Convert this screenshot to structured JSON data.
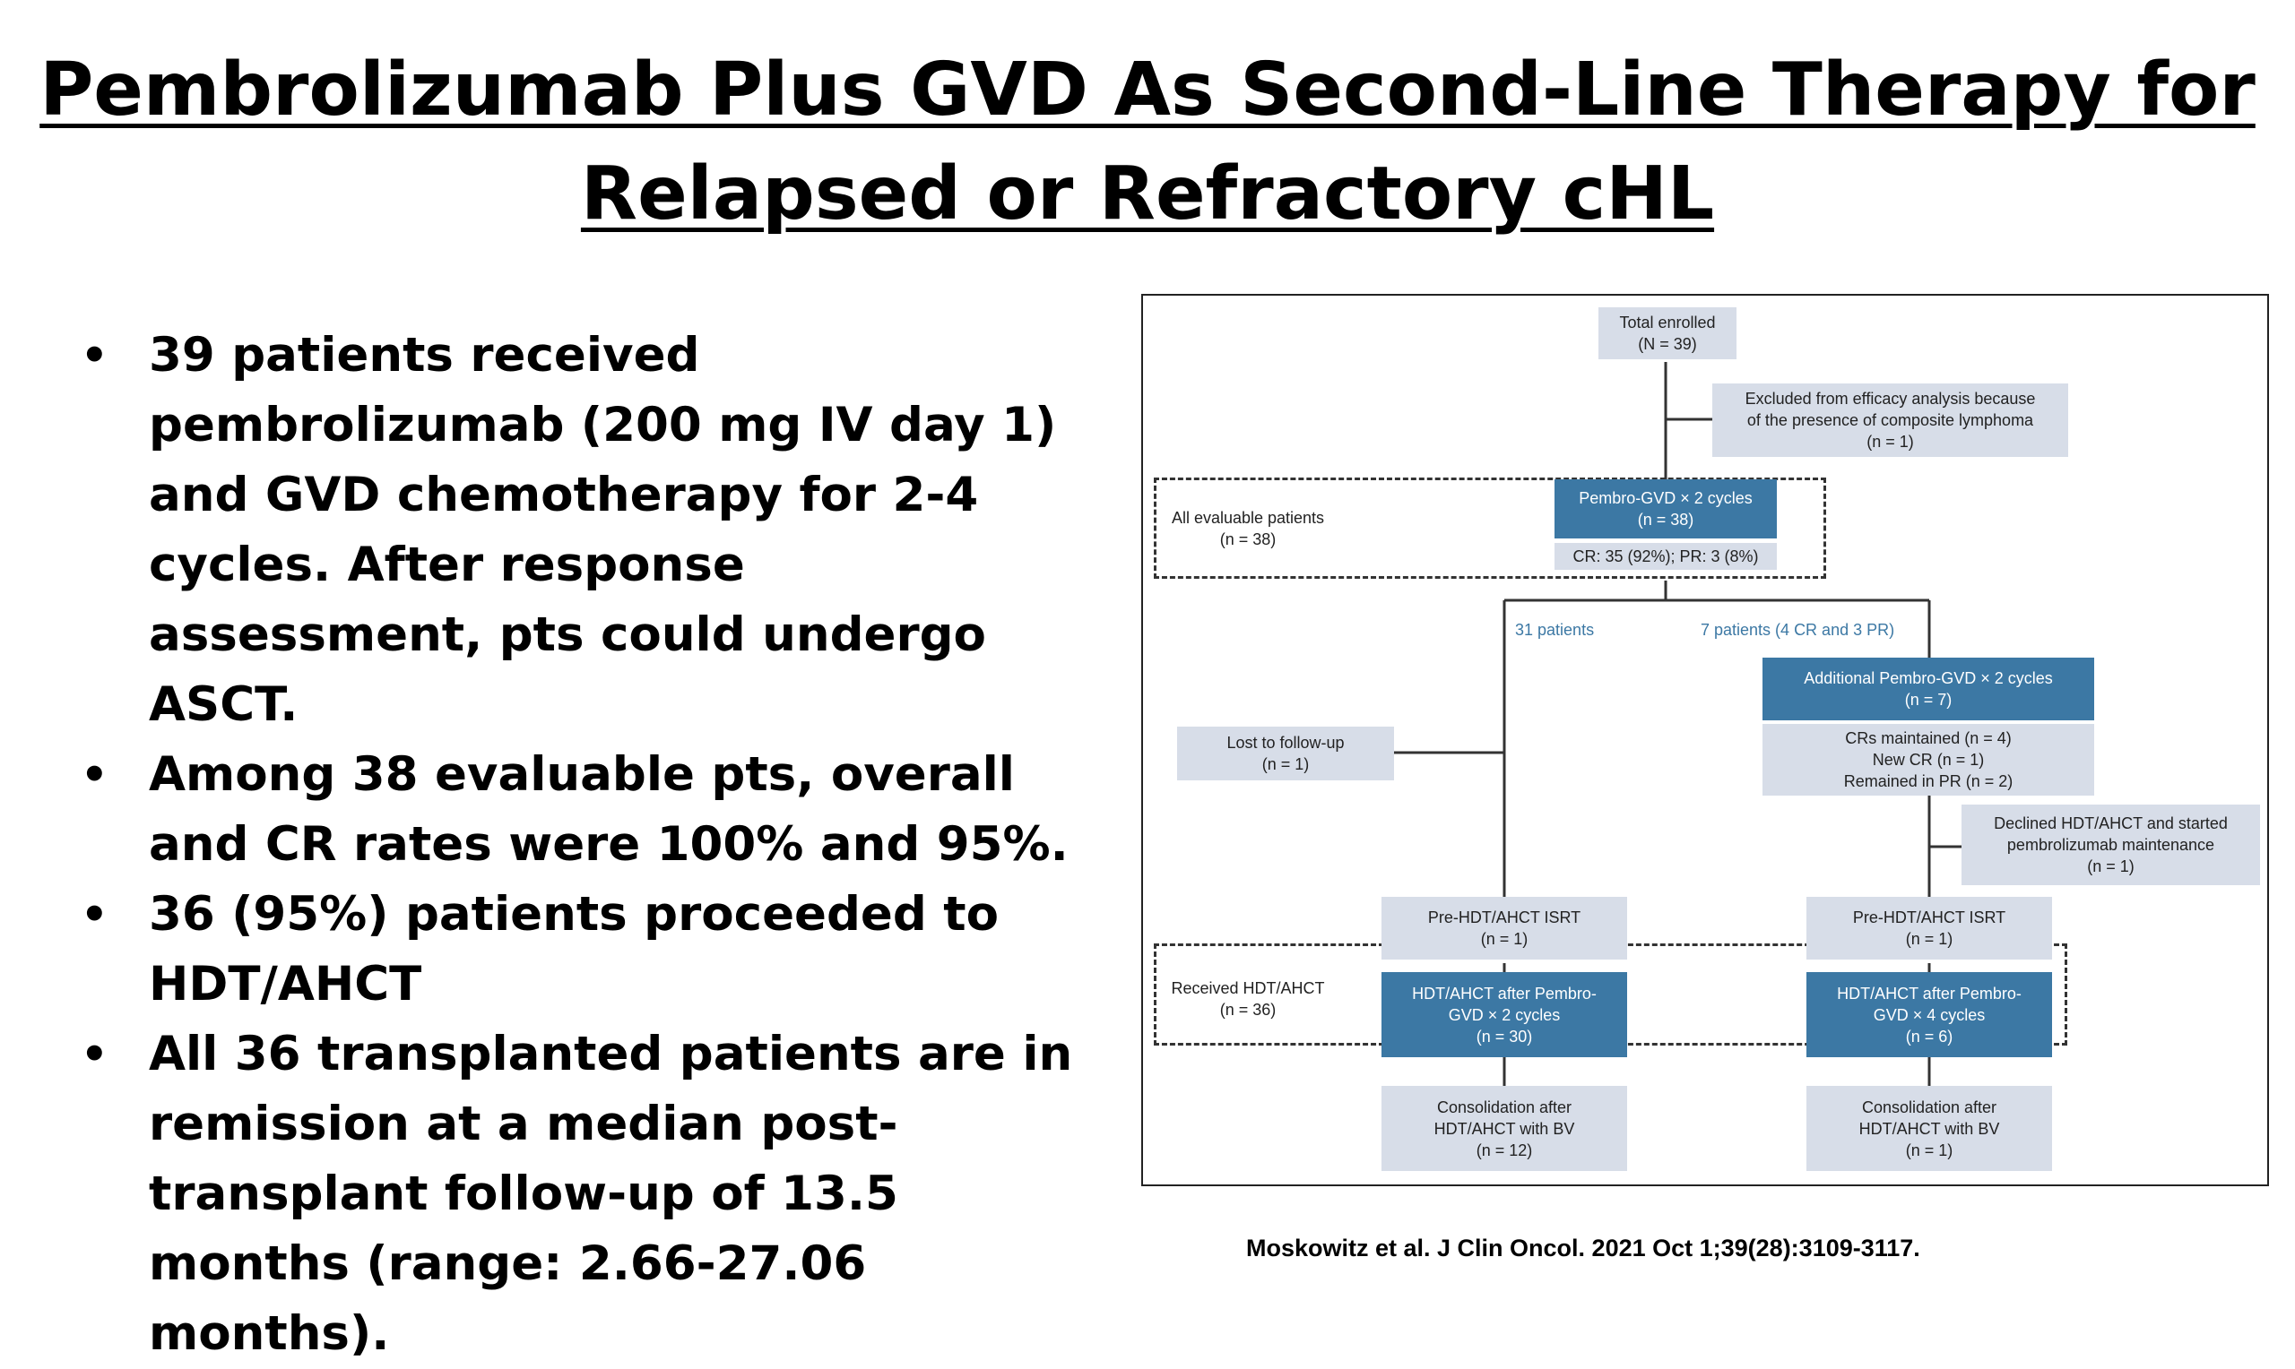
{
  "slide": {
    "title_line1": "Pembrolizumab Plus GVD As Second-Line Therapy for",
    "title_line2": "Relapsed or Refractory cHL",
    "bullets": [
      "39 patients received pembrolizumab (200 mg IV day 1) and GVD chemotherapy for 2-4 cycles. After response assessment, pts could undergo ASCT.",
      "Among 38 evaluable pts, overall and CR rates were 100% and 95%.",
      "36 (95%) patients proceeded to HDT/AHCT",
      "All 36 transplanted patients are in remission at a median post-transplant follow-up of 13.5 months (range: 2.66-27.06 months)."
    ],
    "citation": "Moskowitz et al. J Clin Oncol. 2021 Oct 1;39(28):3109-3117."
  },
  "flowchart": {
    "enrolled": [
      "Total enrolled",
      "(N = 39)"
    ],
    "excluded": [
      "Excluded from efficacy analysis because",
      "of the presence of composite lymphoma",
      "(n = 1)"
    ],
    "evaluable_label": [
      "All evaluable patients",
      "(n = 38)"
    ],
    "pembro2": [
      "Pembro-GVD × 2 cycles",
      "(n = 38)"
    ],
    "response": "CR: 35 (92%); PR: 3 (8%)",
    "branch_left": "31 patients",
    "branch_right": "7 patients (4 CR and 3 PR)",
    "additional": [
      "Additional  Pembro-GVD × 2 cycles",
      "(n = 7)"
    ],
    "outcomes": [
      "CRs maintained (n = 4)",
      "New CR (n = 1)",
      "Remained in PR (n = 2)"
    ],
    "lost": [
      "Lost to follow-up",
      "(n = 1)"
    ],
    "declined": [
      "Declined HDT/AHCT and started",
      "pembrolizumab maintenance",
      "(n = 1)"
    ],
    "isrt_left": [
      "Pre-HDT/AHCT ISRT",
      "(n = 1)"
    ],
    "isrt_right": [
      "Pre-HDT/AHCT ISRT",
      "(n = 1)"
    ],
    "received_label": [
      "Received HDT/AHCT",
      "(n = 36)"
    ],
    "hdt_left": [
      "HDT/AHCT after Pembro-",
      "GVD × 2 cycles",
      "(n = 30)"
    ],
    "hdt_right": [
      "HDT/AHCT after Pembro-",
      "GVD × 4 cycles",
      "(n = 6)"
    ],
    "consol_left": [
      "Consolidation after",
      "HDT/AHCT with BV",
      "(n = 12)"
    ],
    "consol_right": [
      "Consolidation after",
      "HDT/AHCT with BV",
      "(n = 1)"
    ],
    "colors": {
      "blue_box": "#3c78a4",
      "gray_box": "#d7dde8",
      "label_blue": "#3c78a4"
    }
  }
}
